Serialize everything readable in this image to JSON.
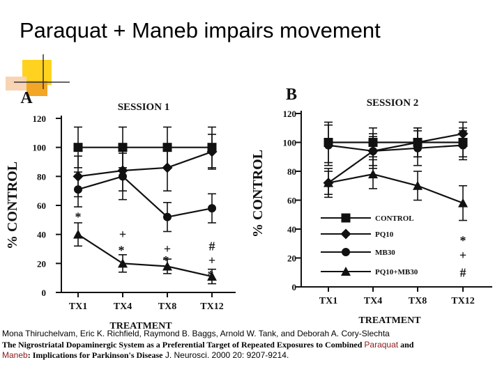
{
  "slide": {
    "title": "Paraquat + Maneb impairs movement"
  },
  "colors": {
    "accent_yellow": "#ffd21f",
    "accent_orange": "#f3a623",
    "accent_peach": "#f8d4b4",
    "highlight": "#8b1a1a"
  },
  "chart_data": [
    {
      "type": "line",
      "panel": "A",
      "title": "SESSION 1",
      "ylabel": "% CONTROL",
      "xlabel": "TREATMENT",
      "categories": [
        "TX1",
        "TX4",
        "TX8",
        "TX12"
      ],
      "ylim": [
        0,
        120
      ],
      "yticks": [
        "0",
        "20",
        "40",
        "60",
        "80",
        "100",
        "120"
      ],
      "series": [
        {
          "name": "CONTROL",
          "marker": "square",
          "values": [
            100,
            100,
            100,
            100
          ],
          "err": [
            14,
            14,
            14,
            14
          ]
        },
        {
          "name": "PQ10",
          "marker": "diamond",
          "values": [
            80,
            84,
            86,
            97
          ],
          "err": [
            14,
            14,
            16,
            12
          ]
        },
        {
          "name": "MB30",
          "marker": "circle",
          "values": [
            71,
            80,
            52,
            58
          ],
          "err": [
            12,
            16,
            10,
            10
          ]
        },
        {
          "name": "PQ10+MB30",
          "marker": "triangle",
          "values": [
            40,
            20,
            18,
            11
          ],
          "err": [
            8,
            6,
            5,
            5
          ]
        }
      ],
      "annotations": [
        {
          "category": "TX1",
          "y": 52,
          "text": "*"
        },
        {
          "category": "TX4",
          "y": 40,
          "text": "+"
        },
        {
          "category": "TX4",
          "y": 29,
          "text": "*"
        },
        {
          "category": "TX8",
          "y": 30,
          "text": "+"
        },
        {
          "category": "TX8",
          "y": 22,
          "text": "*"
        },
        {
          "category": "TX12",
          "y": 32,
          "text": "#"
        },
        {
          "category": "TX12",
          "y": 22,
          "text": "+"
        },
        {
          "category": "TX12",
          "y": 12,
          "text": "*"
        }
      ]
    },
    {
      "type": "line",
      "panel": "B",
      "title": "SESSION 2",
      "ylabel": "% CONTROL",
      "xlabel": "TREATMENT",
      "categories": [
        "TX1",
        "TX4",
        "TX8",
        "TX12"
      ],
      "ylim": [
        0,
        120
      ],
      "yticks": [
        "0",
        "20",
        "40",
        "60",
        "80",
        "100",
        "120"
      ],
      "legend": [
        "CONTROL",
        "PQ10",
        "MB30",
        "PQ10+MB30"
      ],
      "legend_position": "lower-center",
      "series": [
        {
          "name": "CONTROL",
          "marker": "square",
          "values": [
            100,
            100,
            100,
            100
          ],
          "err": [
            14,
            10,
            10,
            10
          ]
        },
        {
          "name": "PQ10",
          "marker": "diamond",
          "values": [
            72,
            94,
            100,
            106
          ],
          "err": [
            10,
            10,
            10,
            8
          ]
        },
        {
          "name": "MB30",
          "marker": "circle",
          "values": [
            98,
            94,
            96,
            98
          ],
          "err": [
            14,
            12,
            12,
            10
          ]
        },
        {
          "name": "PQ10+MB30",
          "marker": "triangle",
          "values": [
            72,
            78,
            70,
            58
          ],
          "err": [
            8,
            10,
            10,
            12
          ]
        }
      ],
      "annotations": [
        {
          "category": "TX12",
          "y": 32,
          "text": "*"
        },
        {
          "category": "TX12",
          "y": 22,
          "text": "+"
        },
        {
          "category": "TX12",
          "y": 10,
          "text": "#"
        }
      ]
    }
  ],
  "citation": {
    "authors": "Mona Thiruchelvam, Eric K. Richfield, Raymond B. Baggs, Arnold W. Tank, and Deborah A. Cory-Slechta",
    "title_part1": "The Nigrostriatal Dopaminergic System as a Preferential Target of Repeated Exposures to Combined ",
    "title_paraquat": "Paraquat",
    "title_and": " and",
    "title_maneb": "Maneb",
    "title_part2": ": Implications for Parkinson's Disease",
    "journal": " J. Neurosci. 2000 20: 9207-9214."
  }
}
